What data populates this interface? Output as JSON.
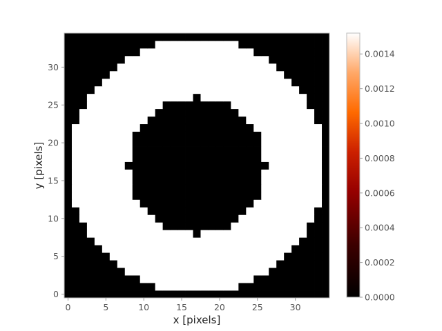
{
  "chart_data": {
    "type": "heatmap",
    "title": "",
    "xlabel": "x [pixels]",
    "ylabel": "y [pixels]",
    "grid": [
      35,
      35
    ],
    "xlim": [
      -0.5,
      34.5
    ],
    "ylim": [
      -0.5,
      34.5
    ],
    "xticks": [
      0,
      5,
      10,
      15,
      20,
      25,
      30
    ],
    "yticks": [
      0,
      5,
      10,
      15,
      20,
      25,
      30
    ],
    "center": [
      17,
      17
    ],
    "annulus": {
      "outer_radius": 16.8,
      "inner_radius": 9,
      "value_inside_annulus": 0.00152,
      "value_outside_annulus": 0.0
    },
    "colorbar": {
      "colormap": "gist_heat",
      "vmin": 0.0,
      "vmax": 0.00152,
      "ticks": [
        0.0,
        0.0002,
        0.0004,
        0.0006,
        0.0008,
        0.001,
        0.0012,
        0.0014
      ],
      "tick_labels": [
        "0.0000",
        "0.0002",
        "0.0004",
        "0.0006",
        "0.0008",
        "0.0010",
        "0.0012",
        "0.0014"
      ]
    }
  }
}
